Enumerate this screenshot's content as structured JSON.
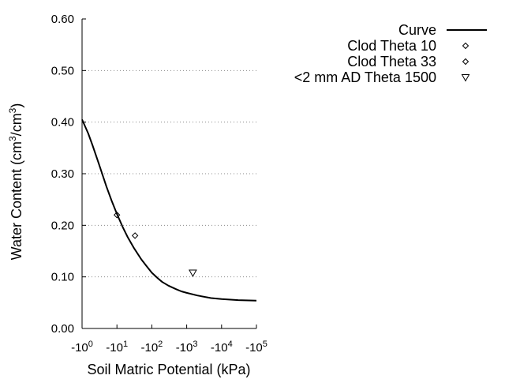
{
  "chart_data": {
    "type": "scatter",
    "xlabel": "Soil Matric Potential (kPa)",
    "ylabel_parts": [
      "Water Content (cm",
      "3",
      "/cm",
      "3",
      ")"
    ],
    "x_scale": "log",
    "x_ticks": [
      {
        "base": "-10",
        "exp": "0"
      },
      {
        "base": "-10",
        "exp": "1"
      },
      {
        "base": "-10",
        "exp": "2"
      },
      {
        "base": "-10",
        "exp": "3"
      },
      {
        "base": "-10",
        "exp": "4"
      },
      {
        "base": "-10",
        "exp": "5"
      }
    ],
    "xlim": [
      1,
      100000
    ],
    "y_ticks": [
      "0.00",
      "0.10",
      "0.20",
      "0.30",
      "0.40",
      "0.50",
      "0.60"
    ],
    "ylim": [
      0,
      0.6
    ],
    "grid": "horizontal dotted",
    "legend_position": "top-right",
    "series": [
      {
        "name": "Curve",
        "kind": "line",
        "color": "#000000",
        "x": [
          1,
          1.5,
          2,
          3,
          5,
          7,
          10,
          15,
          20,
          30,
          50,
          70,
          100,
          150,
          200,
          300,
          500,
          700,
          1000,
          2000,
          5000,
          10000,
          30000,
          100000
        ],
        "y": [
          0.405,
          0.378,
          0.355,
          0.32,
          0.275,
          0.248,
          0.222,
          0.195,
          0.178,
          0.157,
          0.134,
          0.121,
          0.108,
          0.097,
          0.09,
          0.083,
          0.076,
          0.072,
          0.069,
          0.064,
          0.059,
          0.057,
          0.055,
          0.054
        ]
      },
      {
        "name": "Clod Theta 10",
        "kind": "marker",
        "marker": "diamond",
        "x": [
          10
        ],
        "y": [
          0.22
        ]
      },
      {
        "name": "Clod Theta 33",
        "kind": "marker",
        "marker": "diamond",
        "x": [
          33
        ],
        "y": [
          0.18
        ]
      },
      {
        "name": "<2 mm AD Theta 1500",
        "kind": "marker",
        "marker": "triangle-down",
        "x": [
          1500
        ],
        "y": [
          0.108
        ]
      }
    ]
  }
}
